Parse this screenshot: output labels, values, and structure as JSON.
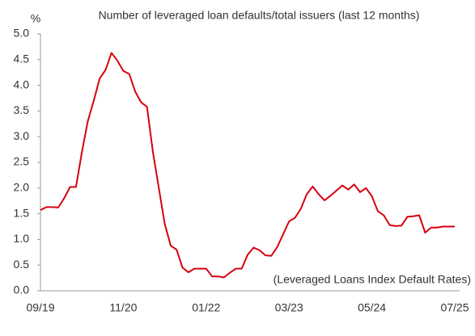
{
  "chart_data": {
    "type": "line",
    "title": "Number of leveraged loan defaults/total issuers (last 12 months)",
    "y_unit": "%",
    "annotation": "(Leveraged Loans Index Default Rates)",
    "categories": [
      "09/19",
      null,
      null,
      null,
      null,
      null,
      null,
      null,
      null,
      null,
      null,
      null,
      null,
      null,
      "11/20",
      null,
      null,
      null,
      null,
      null,
      null,
      null,
      null,
      null,
      null,
      null,
      null,
      null,
      "01/22",
      null,
      null,
      null,
      null,
      null,
      null,
      null,
      null,
      null,
      null,
      null,
      null,
      null,
      "03/23",
      null,
      null,
      null,
      null,
      null,
      null,
      null,
      null,
      null,
      null,
      null,
      null,
      null,
      "05/24",
      null,
      null,
      null,
      null,
      null,
      null,
      null,
      null,
      null,
      null,
      null,
      null,
      null,
      "07/25"
    ],
    "series": [
      {
        "name": "Leveraged Loans Index Default Rates",
        "color": "#d7000f",
        "values": [
          1.57,
          1.63,
          1.63,
          1.62,
          1.8,
          2.02,
          2.02,
          2.7,
          3.3,
          3.7,
          4.13,
          4.3,
          4.63,
          4.48,
          4.28,
          4.22,
          3.88,
          3.67,
          3.58,
          2.7,
          2.0,
          1.3,
          0.88,
          0.8,
          0.45,
          0.36,
          0.43,
          0.43,
          0.43,
          0.28,
          0.28,
          0.26,
          0.35,
          0.43,
          0.43,
          0.7,
          0.84,
          0.79,
          0.69,
          0.68,
          0.85,
          1.1,
          1.35,
          1.42,
          1.6,
          1.88,
          2.03,
          1.88,
          1.76,
          1.85,
          1.95,
          2.05,
          1.97,
          2.07,
          1.92,
          2.0,
          1.84,
          1.55,
          1.47,
          1.28,
          1.26,
          1.27,
          1.44,
          1.45,
          1.47,
          1.13,
          1.23,
          1.23,
          1.25,
          1.25,
          1.25
        ]
      }
    ],
    "ylim": [
      0,
      5
    ],
    "yticks": [
      {
        "value": 0,
        "label": "0.0"
      },
      0.5,
      {
        "value": 1,
        "label": "1.0"
      },
      1.5,
      {
        "value": 2,
        "label": "2.0"
      },
      2.5,
      {
        "value": 3,
        "label": "3.0"
      },
      3.5,
      {
        "value": 4,
        "label": "4.0"
      },
      4.5,
      {
        "value": 5,
        "label": "5.0"
      }
    ],
    "grid": false
  }
}
